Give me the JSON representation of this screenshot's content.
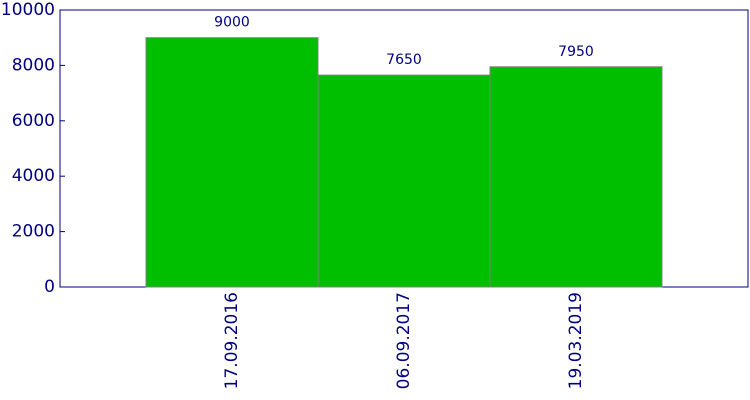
{
  "chart_data": {
    "type": "bar",
    "categories": [
      "17.09.2016",
      "06.09.2017",
      "19.03.2019"
    ],
    "values": [
      9000,
      7650,
      7950
    ],
    "color": "#00bf00",
    "ylim": [
      0,
      10000
    ],
    "yticks": [
      0,
      2000,
      4000,
      6000,
      8000,
      10000
    ]
  }
}
